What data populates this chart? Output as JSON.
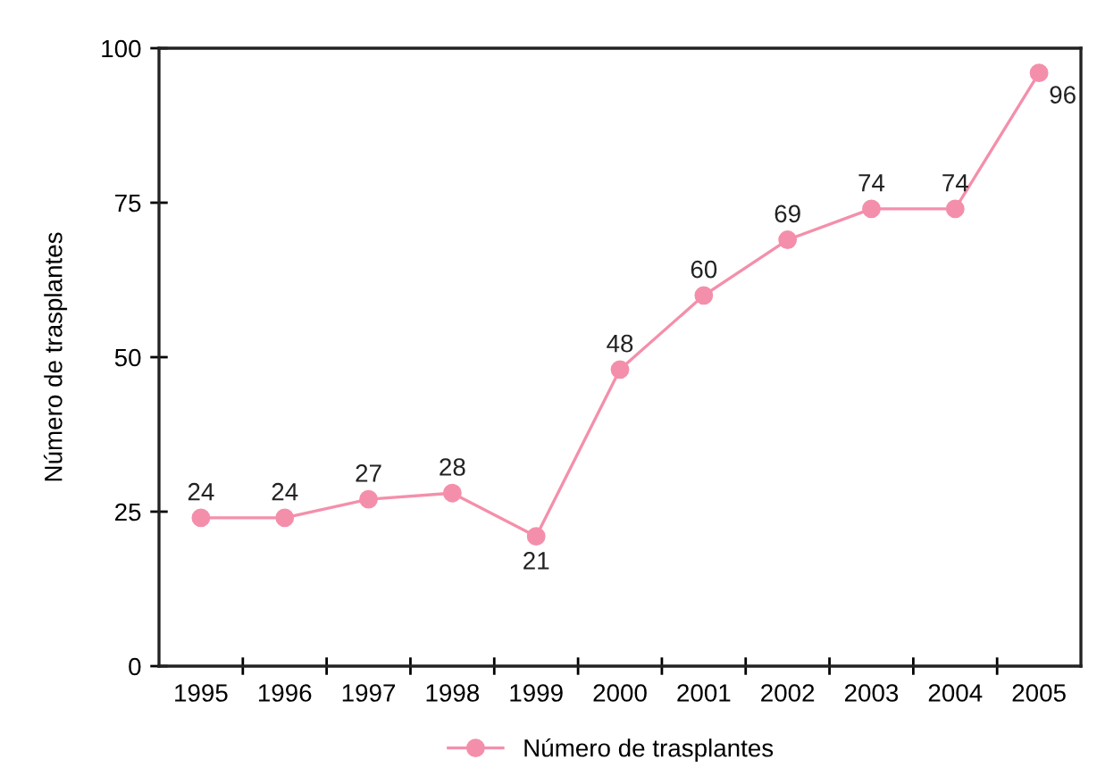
{
  "chart_data": {
    "type": "line",
    "ylabel": "Número de trasplantes",
    "categories": [
      "1995",
      "1996",
      "1997",
      "1998",
      "1999",
      "2000",
      "2001",
      "2002",
      "2003",
      "2004",
      "2005"
    ],
    "series": [
      {
        "name": "Número de trasplantes",
        "color": "#f48fab",
        "values": [
          24,
          24,
          27,
          28,
          21,
          48,
          60,
          69,
          74,
          74,
          96
        ]
      }
    ],
    "ylim": [
      0,
      100
    ],
    "yticks": [
      0,
      25,
      50,
      75,
      100
    ],
    "data_labels": true,
    "legend": "bottom",
    "marker": "circle",
    "line_style": "solid",
    "grid": false
  }
}
